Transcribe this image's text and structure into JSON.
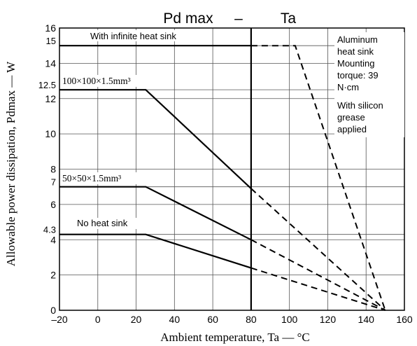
{
  "chart_data": {
    "type": "line",
    "title": "Pd max – Ta",
    "title_parts": [
      "Pd max",
      "–",
      "Ta"
    ],
    "xlabel": "Ambient temperature, Ta — °C",
    "ylabel": "Allowable power dissipation, Pdmax — W",
    "xlim": [
      -20,
      160
    ],
    "ylim": [
      0,
      16
    ],
    "grid": true,
    "x_ticks": [
      -20,
      0,
      20,
      40,
      60,
      80,
      100,
      120,
      140,
      160
    ],
    "x_tick_labels": [
      "–20",
      "0",
      "20",
      "40",
      "60",
      "80",
      "100",
      "120",
      "140",
      "160"
    ],
    "y_ticks": [
      0,
      2,
      4,
      6,
      8,
      10,
      12,
      14,
      16
    ],
    "y_extra_ticks": [
      4.3,
      7,
      12.5,
      15
    ],
    "y_extra_tick_labels": [
      "4.3",
      "7",
      "12.5",
      "15"
    ],
    "series": [
      {
        "name": "With infinite heat sink",
        "solid": [
          [
            -20,
            15
          ],
          [
            80,
            15
          ]
        ],
        "dashed": [
          [
            80,
            15
          ],
          [
            103,
            15
          ],
          [
            150,
            0
          ]
        ]
      },
      {
        "name": "100×100×1.5mm³",
        "solid": [
          [
            -20,
            12.5
          ],
          [
            25,
            12.5
          ],
          [
            80,
            6.9
          ]
        ],
        "dashed": [
          [
            80,
            6.9
          ],
          [
            150,
            0
          ]
        ]
      },
      {
        "name": "50×50×1.5mm³",
        "solid": [
          [
            -20,
            7
          ],
          [
            25,
            7
          ],
          [
            80,
            4
          ]
        ],
        "dashed": [
          [
            80,
            4
          ],
          [
            150,
            0
          ]
        ]
      },
      {
        "name": "No heat sink",
        "solid": [
          [
            -20,
            4.3
          ],
          [
            25,
            4.3
          ],
          [
            80,
            2.4
          ]
        ],
        "dashed": [
          [
            80,
            2.4
          ],
          [
            150,
            0
          ]
        ]
      }
    ],
    "vertical_marker": 80,
    "annotation": [
      "Aluminum",
      "heat sink",
      "Mounting",
      "torque: 39",
      "N·cm",
      "With silicon",
      "grease",
      "applied"
    ]
  }
}
